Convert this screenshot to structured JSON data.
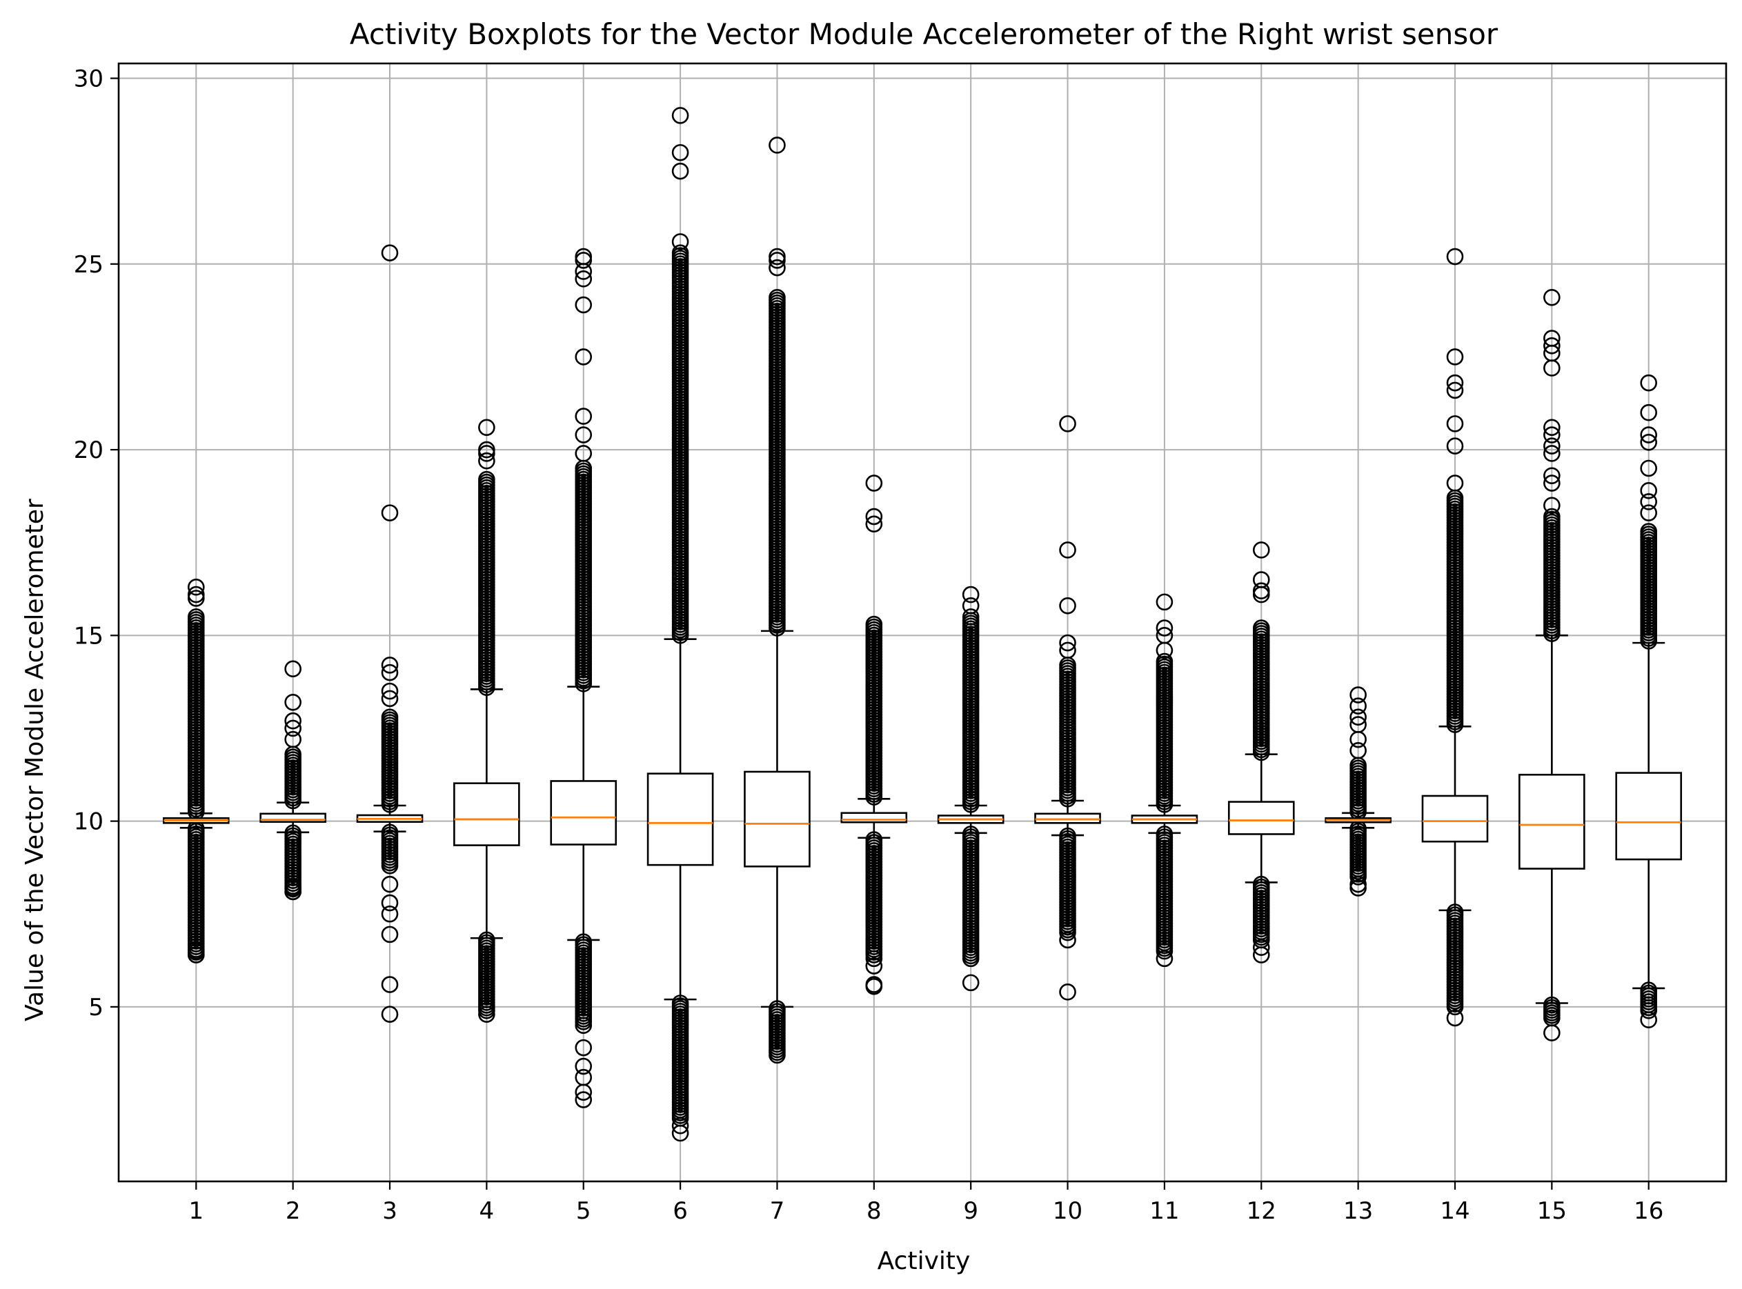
{
  "chart_data": {
    "type": "boxplot",
    "title": "Activity Boxplots for the Vector Module Accelerometer of the Right wrist sensor",
    "xlabel": "Activity",
    "ylabel": "Value of the Vector Module Accelerometer",
    "ylim": [
      0.3,
      30.4
    ],
    "yticks": [
      5,
      10,
      15,
      20,
      25,
      30
    ],
    "grid": true,
    "colors": {
      "box": "#000000",
      "median": "#ff7f0e",
      "grid": "#b0b0b0",
      "flier": "#000000"
    },
    "categories": [
      "1",
      "2",
      "3",
      "4",
      "5",
      "6",
      "7",
      "8",
      "9",
      "10",
      "11",
      "12",
      "13",
      "14",
      "15",
      "16"
    ],
    "boxes": [
      {
        "activity": "1",
        "whisker_low": 9.82,
        "q1": 9.95,
        "median": 10.02,
        "q3": 10.08,
        "whisker_high": 10.21,
        "outlier_ranges": [
          [
            6.4,
            9.8
          ],
          [
            10.25,
            15.5
          ]
        ],
        "outliers": [
          16.0,
          16.1,
          16.3,
          6.4,
          6.5
        ]
      },
      {
        "activity": "2",
        "whisker_low": 9.7,
        "q1": 9.98,
        "median": 10.04,
        "q3": 10.2,
        "whisker_high": 10.5,
        "outlier_ranges": [
          [
            8.1,
            9.68
          ],
          [
            10.55,
            11.8
          ]
        ],
        "outliers": [
          12.2,
          12.5,
          12.7,
          13.2,
          14.1,
          8.1,
          8.2
        ]
      },
      {
        "activity": "3",
        "whisker_low": 9.72,
        "q1": 9.98,
        "median": 10.06,
        "q3": 10.16,
        "whisker_high": 10.42,
        "outlier_ranges": [
          [
            8.8,
            9.7
          ],
          [
            10.45,
            12.8
          ]
        ],
        "outliers": [
          13.3,
          13.5,
          14.0,
          14.2,
          18.3,
          25.3,
          8.3,
          7.8,
          7.5,
          6.95,
          5.6,
          4.8
        ]
      },
      {
        "activity": "4",
        "whisker_low": 6.85,
        "q1": 9.35,
        "median": 10.05,
        "q3": 11.02,
        "whisker_high": 13.55,
        "outlier_ranges": [
          [
            13.6,
            19.2
          ],
          [
            4.9,
            6.8
          ]
        ],
        "outliers": [
          19.7,
          19.9,
          20.0,
          20.6,
          4.8
        ]
      },
      {
        "activity": "5",
        "whisker_low": 6.8,
        "q1": 9.37,
        "median": 10.1,
        "q3": 11.08,
        "whisker_high": 13.62,
        "outlier_ranges": [
          [
            13.7,
            19.5
          ],
          [
            4.6,
            6.75
          ]
        ],
        "outliers": [
          19.9,
          20.4,
          20.9,
          22.5,
          23.9,
          24.6,
          24.8,
          25.1,
          25.2,
          4.5,
          3.9,
          3.4,
          3.1,
          2.7,
          2.5
        ]
      },
      {
        "activity": "6",
        "whisker_low": 5.2,
        "q1": 8.82,
        "median": 9.95,
        "q3": 11.28,
        "whisker_high": 14.9,
        "outlier_ranges": [
          [
            15.0,
            25.3
          ],
          [
            2.0,
            5.1
          ]
        ],
        "outliers": [
          25.6,
          27.5,
          28.0,
          29.0,
          1.6,
          1.8
        ]
      },
      {
        "activity": "7",
        "whisker_low": 5.0,
        "q1": 8.78,
        "median": 9.93,
        "q3": 11.33,
        "whisker_high": 15.12,
        "outlier_ranges": [
          [
            15.2,
            24.1
          ],
          [
            3.7,
            4.95
          ]
        ],
        "outliers": [
          24.9,
          25.1,
          25.2,
          28.2
        ]
      },
      {
        "activity": "8",
        "whisker_low": 9.55,
        "q1": 9.97,
        "median": 10.04,
        "q3": 10.22,
        "whisker_high": 10.6,
        "outlier_ranges": [
          [
            10.65,
            15.3
          ],
          [
            6.4,
            9.5
          ]
        ],
        "outliers": [
          18.0,
          18.2,
          19.1,
          6.3,
          6.1,
          5.6,
          5.55
        ]
      },
      {
        "activity": "9",
        "whisker_low": 9.68,
        "q1": 9.95,
        "median": 10.05,
        "q3": 10.15,
        "whisker_high": 10.42,
        "outlier_ranges": [
          [
            10.45,
            15.4
          ],
          [
            6.3,
            9.65
          ]
        ],
        "outliers": [
          15.5,
          15.8,
          16.1,
          5.65
        ]
      },
      {
        "activity": "10",
        "whisker_low": 9.62,
        "q1": 9.95,
        "median": 10.05,
        "q3": 10.2,
        "whisker_high": 10.55,
        "outlier_ranges": [
          [
            10.6,
            14.2
          ],
          [
            7.0,
            9.6
          ]
        ],
        "outliers": [
          14.6,
          14.8,
          15.8,
          17.3,
          20.7,
          6.8,
          5.4
        ]
      },
      {
        "activity": "11",
        "whisker_low": 9.68,
        "q1": 9.95,
        "median": 10.05,
        "q3": 10.15,
        "whisker_high": 10.42,
        "outlier_ranges": [
          [
            10.45,
            14.3
          ],
          [
            6.5,
            9.65
          ]
        ],
        "outliers": [
          14.6,
          15.0,
          15.2,
          15.9,
          6.3
        ]
      },
      {
        "activity": "12",
        "whisker_low": 8.35,
        "q1": 9.65,
        "median": 10.02,
        "q3": 10.52,
        "whisker_high": 11.8,
        "outlier_ranges": [
          [
            11.85,
            15.2
          ],
          [
            6.8,
            8.3
          ]
        ],
        "outliers": [
          16.1,
          16.2,
          16.5,
          17.3,
          6.6,
          6.4
        ]
      },
      {
        "activity": "13",
        "whisker_low": 9.82,
        "q1": 9.97,
        "median": 10.03,
        "q3": 10.08,
        "whisker_high": 10.22,
        "outlier_ranges": [
          [
            10.25,
            11.5
          ],
          [
            8.5,
            9.8
          ]
        ],
        "outliers": [
          11.9,
          12.2,
          12.6,
          12.8,
          13.1,
          13.4,
          8.3,
          8.2
        ]
      },
      {
        "activity": "14",
        "whisker_low": 7.6,
        "q1": 9.45,
        "median": 10.0,
        "q3": 10.68,
        "whisker_high": 12.55,
        "outlier_ranges": [
          [
            12.6,
            18.7
          ],
          [
            5.0,
            7.55
          ]
        ],
        "outliers": [
          19.1,
          20.1,
          20.7,
          21.6,
          21.8,
          22.5,
          25.2,
          4.7
        ]
      },
      {
        "activity": "15",
        "whisker_low": 5.1,
        "q1": 8.72,
        "median": 9.9,
        "q3": 11.25,
        "whisker_high": 15.0,
        "outlier_ranges": [
          [
            15.05,
            18.2
          ],
          [
            4.7,
            5.05
          ]
        ],
        "outliers": [
          18.5,
          19.1,
          19.3,
          19.9,
          20.1,
          20.4,
          20.6,
          22.2,
          22.6,
          22.8,
          23.0,
          24.1,
          4.3
        ]
      },
      {
        "activity": "16",
        "whisker_low": 5.5,
        "q1": 8.97,
        "median": 9.97,
        "q3": 11.3,
        "whisker_high": 14.8,
        "outlier_ranges": [
          [
            14.85,
            17.8
          ],
          [
            4.9,
            5.45
          ]
        ],
        "outliers": [
          18.3,
          18.6,
          18.9,
          19.5,
          20.2,
          20.4,
          21.0,
          21.8,
          4.65
        ]
      }
    ]
  }
}
